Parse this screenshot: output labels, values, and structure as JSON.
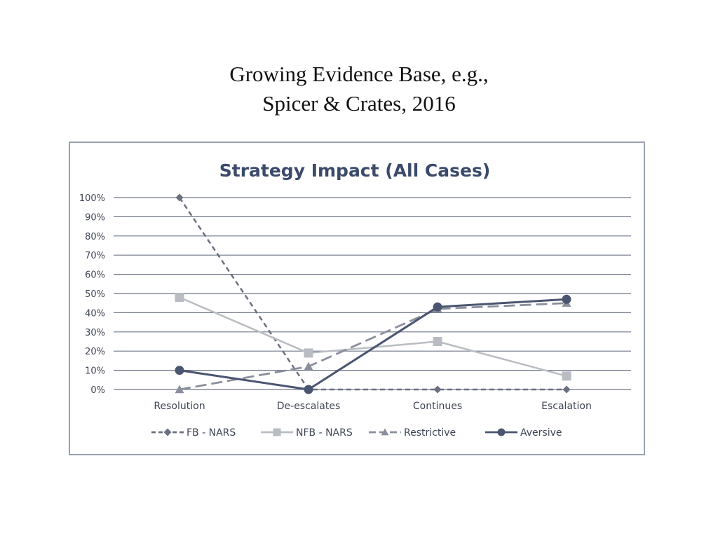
{
  "slide": {
    "title_line1": "Growing Evidence Base, e.g.,",
    "title_line2": "Spicer & Crates, 2016"
  },
  "chart_data": {
    "type": "line",
    "title": "Strategy Impact (All Cases)",
    "categories": [
      "Resolution",
      "De-escalates",
      "Continues",
      "Escalation"
    ],
    "y_ticks": [
      "0%",
      "10%",
      "20%",
      "30%",
      "40%",
      "50%",
      "60%",
      "70%",
      "80%",
      "90%",
      "100%"
    ],
    "ylim": [
      0,
      100
    ],
    "grid": true,
    "legend_position": "bottom",
    "series": [
      {
        "name": "FB - NARS",
        "values": [
          100,
          0,
          0,
          0
        ],
        "color": "#6b7080",
        "dash": "dashed-short",
        "marker": "diamond"
      },
      {
        "name": "NFB - NARS",
        "values": [
          48,
          19,
          25,
          7
        ],
        "color": "#b9bcc2",
        "dash": "solid",
        "marker": "square"
      },
      {
        "name": "Restrictive",
        "values": [
          0,
          12,
          42,
          45
        ],
        "color": "#8a8f9c",
        "dash": "dashed-long",
        "marker": "triangle"
      },
      {
        "name": "Aversive",
        "values": [
          10,
          0,
          43,
          47
        ],
        "color": "#4a5570",
        "dash": "solid",
        "marker": "circle"
      }
    ]
  }
}
